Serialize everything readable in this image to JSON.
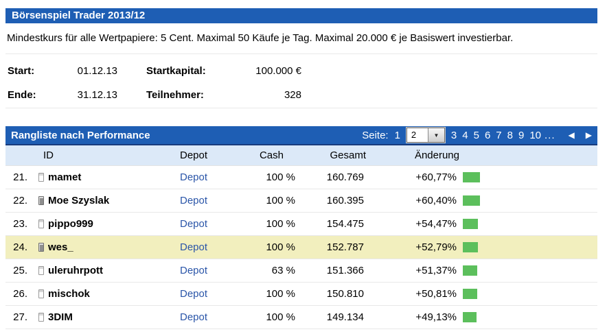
{
  "header": {
    "title": "Börsenspiel Trader 2013/12"
  },
  "description": "Mindestkurs für alle Wertpapiere: 5 Cent. Maximal 50 Käufe je Tag. Maximal 20.000 € je Basiswert investierbar.",
  "info": {
    "start_label": "Start:",
    "start_value": "01.12.13",
    "startkapital_label": "Startkapital:",
    "startkapital_value": "100.000 €",
    "ende_label": "Ende:",
    "ende_value": "31.12.13",
    "teilnehmer_label": "Teilnehmer:",
    "teilnehmer_value": "328"
  },
  "ranking": {
    "title": "Rangliste nach Performance",
    "pagination": {
      "label": "Seite:",
      "pages_before": [
        "1"
      ],
      "current_page": "2",
      "pages_after": [
        "3",
        "4",
        "5",
        "6",
        "7",
        "8",
        "9",
        "10"
      ],
      "ellipsis": "...",
      "prev_icon": "◀",
      "next_icon": "▶"
    },
    "columns": [
      "ID",
      "Depot",
      "Cash",
      "Gesamt",
      "Änderung"
    ],
    "depot_link_label": "Depot",
    "rows": [
      {
        "rank": "21.",
        "id": "mamet",
        "icon_filled": false,
        "cash": "100 %",
        "gesamt": "160.769",
        "aenderung": "+60,77%",
        "change_pct": 60.77,
        "highlight": false
      },
      {
        "rank": "22.",
        "id": "Moe Szyslak",
        "icon_filled": true,
        "cash": "100 %",
        "gesamt": "160.395",
        "aenderung": "+60,40%",
        "change_pct": 60.4,
        "highlight": false
      },
      {
        "rank": "23.",
        "id": "pippo999",
        "icon_filled": false,
        "cash": "100 %",
        "gesamt": "154.475",
        "aenderung": "+54,47%",
        "change_pct": 54.47,
        "highlight": false
      },
      {
        "rank": "24.",
        "id": "wes_",
        "icon_filled": true,
        "cash": "100 %",
        "gesamt": "152.787",
        "aenderung": "+52,79%",
        "change_pct": 52.79,
        "highlight": true
      },
      {
        "rank": "25.",
        "id": "uleruhrpott",
        "icon_filled": false,
        "cash": "63 %",
        "gesamt": "151.366",
        "aenderung": "+51,37%",
        "change_pct": 51.37,
        "highlight": false
      },
      {
        "rank": "26.",
        "id": "mischok",
        "icon_filled": false,
        "cash": "100 %",
        "gesamt": "150.810",
        "aenderung": "+50,81%",
        "change_pct": 50.81,
        "highlight": false
      },
      {
        "rank": "27.",
        "id": "3DIM",
        "icon_filled": false,
        "cash": "100 %",
        "gesamt": "149.134",
        "aenderung": "+49,13%",
        "change_pct": 49.13,
        "highlight": false
      }
    ]
  },
  "colors": {
    "header_blue": "#1e5eb4",
    "table_header_bg": "#dce9f8",
    "highlight_row": "#f2efbe",
    "positive_bar": "#5cbf5c",
    "link_blue": "#2a55a8"
  }
}
